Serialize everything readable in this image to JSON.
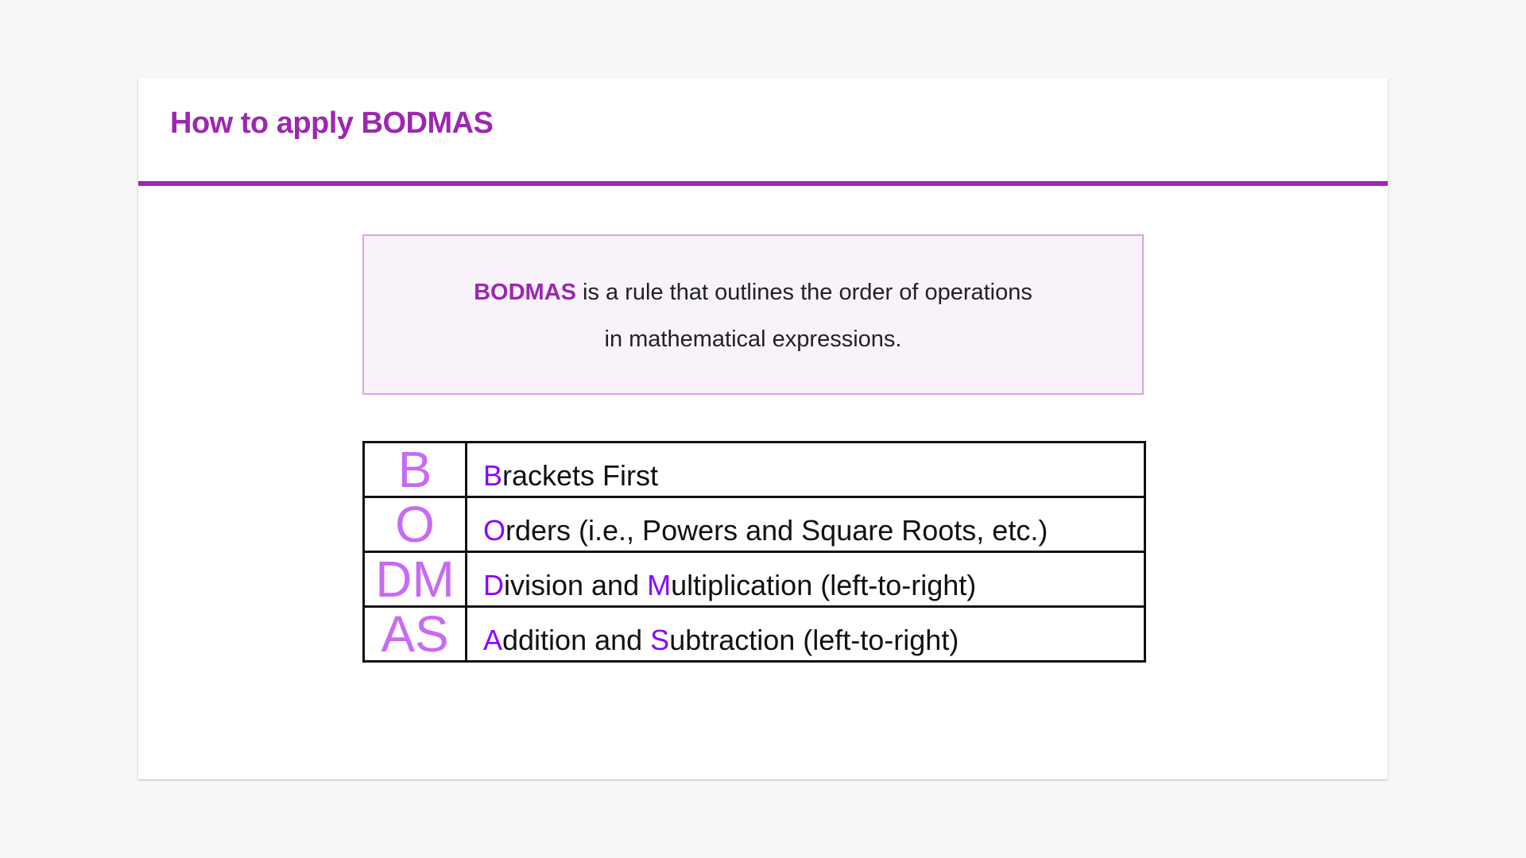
{
  "title": "How to apply BODMAS",
  "colors": {
    "accent": "#9c27b0",
    "letter": "#c86af5",
    "highlight": "#8a00ff"
  },
  "callout": {
    "keyword": "BODMAS",
    "line1": " is a rule that outlines the order of operations",
    "line2": "in mathematical expressions."
  },
  "rows": [
    {
      "letter": "B",
      "parts": [
        {
          "hl": "B"
        },
        {
          "t": "rackets First"
        }
      ]
    },
    {
      "letter": "O",
      "parts": [
        {
          "hl": "O"
        },
        {
          "t": "rders (i.e., Powers and Square Roots, etc.)"
        }
      ]
    },
    {
      "letter": "DM",
      "parts": [
        {
          "hl": "D"
        },
        {
          "t": "ivision and "
        },
        {
          "hl": "M"
        },
        {
          "t": "ultiplication (left-to-right)"
        }
      ]
    },
    {
      "letter": "AS",
      "parts": [
        {
          "hl": "A"
        },
        {
          "t": "ddition and "
        },
        {
          "hl": "S"
        },
        {
          "t": "ubtraction (left-to-right)"
        }
      ]
    }
  ]
}
